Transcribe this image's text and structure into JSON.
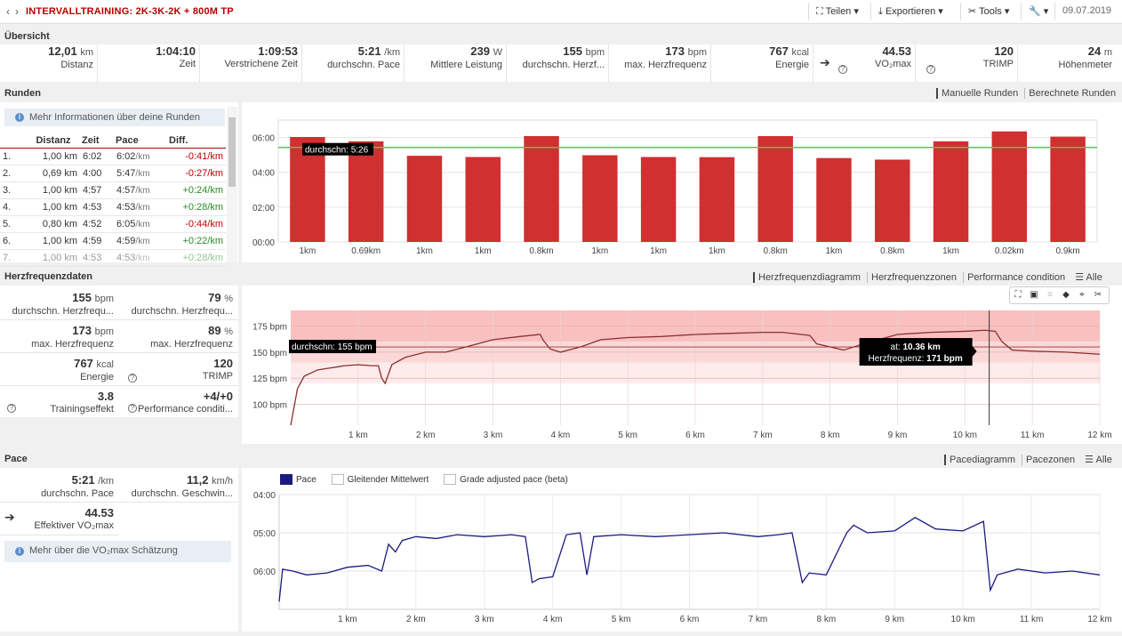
{
  "header": {
    "back": "‹",
    "forward": "›",
    "title": "INTERVALLTRAINING: 2K-3K-2K + 800M TP",
    "share": "Teilen",
    "export": "Exportieren",
    "tools": "Tools",
    "date": "09.07.2019"
  },
  "overview": {
    "title": "Übersicht",
    "stats": [
      {
        "value": "12,01",
        "unit": "km",
        "label": "Distanz"
      },
      {
        "value": "1:04:10",
        "unit": "",
        "label": "Zeit"
      },
      {
        "value": "1:09:53",
        "unit": "",
        "label": "Verstrichene Zeit"
      },
      {
        "value": "5:21",
        "unit": "/km",
        "label": "durchschn. Pace"
      },
      {
        "value": "239",
        "unit": "W",
        "label": "Mittlere Leistung"
      },
      {
        "value": "155",
        "unit": "bpm",
        "label": "durchschn. Herzf..."
      },
      {
        "value": "173",
        "unit": "bpm",
        "label": "max. Herzfrequenz"
      },
      {
        "value": "767",
        "unit": "kcal",
        "label": "Energie"
      },
      {
        "value": "44.53",
        "unit": "",
        "label": "VO₂max"
      },
      {
        "value": "120",
        "unit": "",
        "label": "TRIMP"
      },
      {
        "value": "24",
        "unit": "m",
        "label": "Höhenmeter"
      }
    ]
  },
  "laps": {
    "title": "Runden",
    "tab_manual": "Manuelle Runden",
    "tab_calc": "Berechnete Runden",
    "info": "Mehr Informationen über deine Runden",
    "columns": [
      "Distanz",
      "Zeit",
      "Pace",
      "Diff."
    ],
    "rows": [
      {
        "n": "1.",
        "dist": "1,00 km",
        "time": "6:02",
        "pace": "6:02",
        "pace_unit": "/km",
        "diff": "-0:41/km",
        "sign": "neg"
      },
      {
        "n": "2.",
        "dist": "0,69 km",
        "time": "4:00",
        "pace": "5:47",
        "pace_unit": "/km",
        "diff": "-0:27/km",
        "sign": "neg"
      },
      {
        "n": "3.",
        "dist": "1,00 km",
        "time": "4:57",
        "pace": "4:57",
        "pace_unit": "/km",
        "diff": "+0:24/km",
        "sign": "pos"
      },
      {
        "n": "4.",
        "dist": "1,00 km",
        "time": "4:53",
        "pace": "4:53",
        "pace_unit": "/km",
        "diff": "+0:28/km",
        "sign": "pos"
      },
      {
        "n": "5.",
        "dist": "0,80 km",
        "time": "4:52",
        "pace": "6:05",
        "pace_unit": "/km",
        "diff": "-0:44/km",
        "sign": "neg"
      },
      {
        "n": "6.",
        "dist": "1,00 km",
        "time": "4:59",
        "pace": "4:59",
        "pace_unit": "/km",
        "diff": "+0:22/km",
        "sign": "pos"
      },
      {
        "n": "7.",
        "dist": "1,00 km",
        "time": "4:53",
        "pace": "4:53",
        "pace_unit": "/km",
        "diff": "+0:28/km",
        "sign": "pos"
      }
    ]
  },
  "hr": {
    "title": "Herzfrequenzdaten",
    "tab_diagram": "Herzfrequenzdiagramm",
    "tab_zones": "Herzfrequenzzonen",
    "tab_perf": "Performance condition",
    "tab_all": "Alle",
    "cells": [
      {
        "value": "155",
        "unit": "bpm",
        "label": "durchschn. Herzfrequ..."
      },
      {
        "value": "79",
        "unit": "%",
        "label": "durchschn. Herzfrequ..."
      },
      {
        "value": "173",
        "unit": "bpm",
        "label": "max. Herzfrequenz"
      },
      {
        "value": "89",
        "unit": "%",
        "label": "max. Herzfrequenz"
      },
      {
        "value": "767",
        "unit": "kcal",
        "label": "Energie"
      },
      {
        "value": "120",
        "unit": "",
        "label": "TRIMP"
      },
      {
        "value": "3.8",
        "unit": "",
        "label": "Trainingseffekt"
      },
      {
        "value": "+4/+0",
        "unit": "",
        "label": "Performance conditi..."
      }
    ],
    "avg_label": "durchschn: 155 bpm",
    "tooltip_at_label": "at:",
    "tooltip_at": "10.36 km",
    "tooltip_hr_label": "Herzfrequenz:",
    "tooltip_hr": "171 bpm"
  },
  "pace": {
    "title": "Pace",
    "tab_diagram": "Pacediagramm",
    "tab_zones": "Pacezonen",
    "tab_all": "Alle",
    "avg_pace": "5:21",
    "avg_pace_unit": "/km",
    "avg_pace_label": "durchschn. Pace",
    "avg_speed": "11,2",
    "avg_speed_unit": "km/h",
    "avg_speed_label": "durchschn. Geschwin...",
    "vo2": "44.53",
    "vo2_label": "Effektiver VO₂max",
    "info": "Mehr über die VO₂max Schätzung",
    "legend_pace": "Pace",
    "legend_smooth": "Gleitender Mittelwert",
    "legend_gap": "Grade adjusted pace (beta)"
  },
  "chart_data": [
    {
      "type": "bar",
      "categories": [
        "1km",
        "0.69km",
        "1km",
        "1km",
        "0.8km",
        "1km",
        "1km",
        "1km",
        "0.8km",
        "1km",
        "0.8km",
        "1km",
        "0.02km",
        "0.9km"
      ],
      "values": [
        6.03,
        5.78,
        4.95,
        4.88,
        6.08,
        4.98,
        4.88,
        4.87,
        6.08,
        4.82,
        4.73,
        5.78,
        6.35,
        6.05
      ],
      "yticks": [
        "00:00",
        "02:00",
        "04:00",
        "06:00"
      ],
      "ylim": [
        0,
        7
      ],
      "average": 5.43,
      "average_label": "durchschn: 5:26",
      "color": "#d03030"
    },
    {
      "type": "line",
      "x_ticks": [
        "1 km",
        "2 km",
        "3 km",
        "4 km",
        "5 km",
        "6 km",
        "7 km",
        "8 km",
        "9 km",
        "10 km",
        "11 km",
        "12 km"
      ],
      "yticks": [
        "100 bpm",
        "125 bpm",
        "150 bpm",
        "175 bpm"
      ],
      "ylim": [
        80,
        190
      ],
      "xlim": [
        0,
        12
      ],
      "average": 155,
      "color": "#8b3030",
      "x": [
        0,
        0.1,
        0.2,
        0.4,
        0.6,
        0.8,
        1.0,
        1.2,
        1.3,
        1.35,
        1.4,
        1.5,
        1.7,
        2.0,
        2.3,
        2.6,
        3.0,
        3.4,
        3.7,
        3.75,
        3.85,
        4.0,
        4.3,
        4.6,
        5.0,
        5.5,
        6.0,
        6.5,
        7.0,
        7.3,
        7.7,
        7.8,
        8.0,
        8.2,
        8.5,
        9.0,
        9.5,
        10.0,
        10.3,
        10.45,
        10.55,
        10.7,
        11.0,
        11.5,
        12.0
      ],
      "y": [
        80,
        115,
        127,
        133,
        135,
        137,
        138,
        137,
        137,
        125,
        120,
        138,
        145,
        150,
        150,
        155,
        162,
        165,
        167,
        161,
        153,
        150,
        155,
        162,
        164,
        165,
        167,
        168,
        169,
        169,
        166,
        158,
        155,
        152,
        158,
        167,
        169,
        170,
        171,
        170,
        160,
        152,
        151,
        150,
        148
      ]
    },
    {
      "type": "line",
      "x_ticks": [
        "1 km",
        "2 km",
        "3 km",
        "4 km",
        "5 km",
        "6 km",
        "7 km",
        "8 km",
        "9 km",
        "10 km",
        "11 km",
        "12 km"
      ],
      "yticks": [
        "04:00",
        "05:00",
        "06:00"
      ],
      "ylim_minutes": [
        4.0,
        7.0
      ],
      "inverted": true,
      "xlim": [
        0,
        12
      ],
      "color": "#1a1a80",
      "x": [
        0,
        0.05,
        0.2,
        0.4,
        0.7,
        1.0,
        1.3,
        1.5,
        1.6,
        1.7,
        1.8,
        2.0,
        2.3,
        2.6,
        3.0,
        3.4,
        3.6,
        3.7,
        3.8,
        4.0,
        4.2,
        4.4,
        4.5,
        4.6,
        5.0,
        5.5,
        6.0,
        6.5,
        7.0,
        7.3,
        7.5,
        7.65,
        7.75,
        8.0,
        8.3,
        8.4,
        8.6,
        9.0,
        9.3,
        9.6,
        10.0,
        10.3,
        10.4,
        10.5,
        10.8,
        11.2,
        11.6,
        12.0
      ],
      "y": [
        6.8,
        5.95,
        6.0,
        6.1,
        6.05,
        5.9,
        5.85,
        6.0,
        5.3,
        5.5,
        5.2,
        5.1,
        5.15,
        5.05,
        5.1,
        5.05,
        5.1,
        6.3,
        6.2,
        6.15,
        5.05,
        5.0,
        6.1,
        5.1,
        5.05,
        5.1,
        5.05,
        5.0,
        5.1,
        5.05,
        5.0,
        6.3,
        6.05,
        6.1,
        5.0,
        4.8,
        5.0,
        4.95,
        4.6,
        4.9,
        4.95,
        4.7,
        6.5,
        6.1,
        5.95,
        6.05,
        6.0,
        6.1
      ]
    }
  ]
}
